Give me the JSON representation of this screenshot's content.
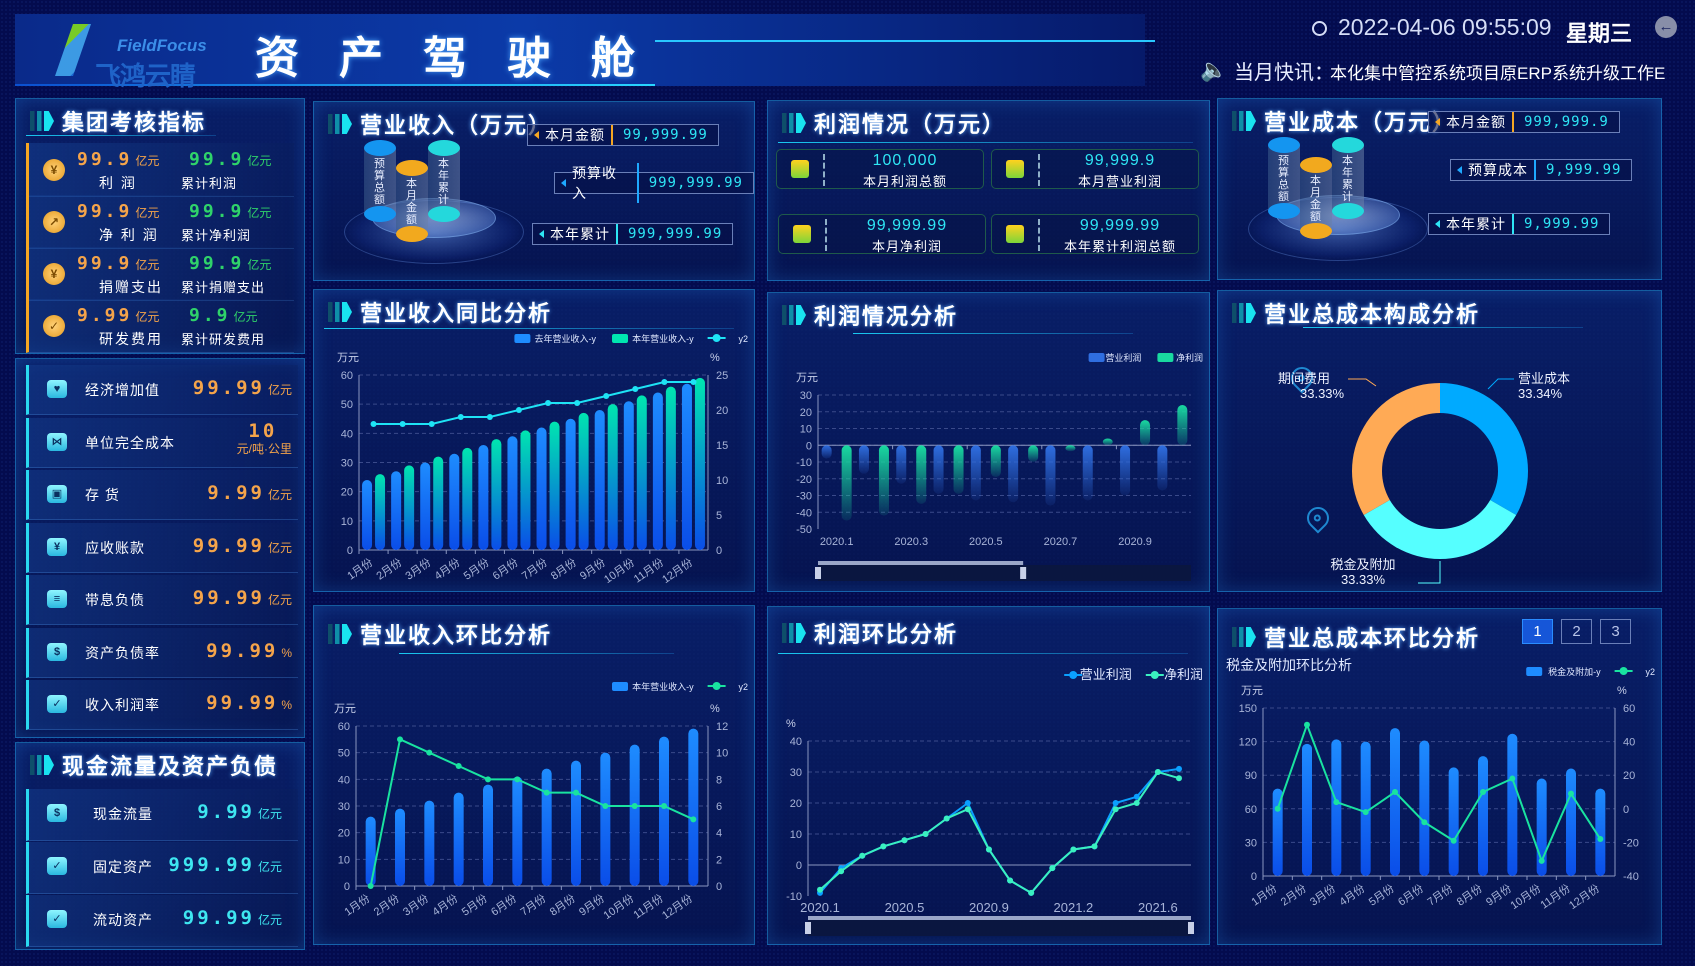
{
  "header": {
    "logo_text": "FieldFocus",
    "logo_cn": "飞鸿云睛",
    "title": "资产驾驶舱",
    "datetime": "2022-04-06  09:55:09",
    "weekday": "星期三",
    "news_label": "当月快讯：",
    "news_text": "本化集中管控系统项目原ERP系统升级工作E",
    "icons": {
      "clock": "clock-icon",
      "news": "speaker-icon",
      "back": "back-arrow-icon"
    }
  },
  "kpi": {
    "title": "集团考核指标",
    "items": [
      {
        "icon": "coins-icon",
        "value": "99.9",
        "unit": "亿元",
        "label": "利 润",
        "cum_value": "99.9",
        "cum_unit": "亿元",
        "cum_label": "累计利润"
      },
      {
        "icon": "trend-chart-icon",
        "value": "99.9",
        "unit": "亿元",
        "label": "净 利 润",
        "cum_value": "99.9",
        "cum_unit": "亿元",
        "cum_label": "累计净利润"
      },
      {
        "icon": "money-bag-icon",
        "value": "99.9",
        "unit": "亿元",
        "label": "捐赠支出",
        "cum_value": "99.9",
        "cum_unit": "亿元",
        "cum_label": "累计捐赠支出"
      },
      {
        "icon": "document-check-icon",
        "value": "9.99",
        "unit": "亿元",
        "label": "研发费用",
        "cum_value": "9.9",
        "cum_unit": "亿元",
        "cum_label": "累计研发费用"
      }
    ]
  },
  "indicators": [
    {
      "icon": "heart-hand-icon",
      "label": "经济增加值",
      "value": "99.99",
      "unit": "亿元"
    },
    {
      "icon": "network-icon",
      "label": "单位完全成本",
      "value": "10",
      "unit": "元/吨·公里"
    },
    {
      "icon": "box-icon",
      "label": "存 货",
      "value": "9.99",
      "unit": "亿元"
    },
    {
      "icon": "yuan-down-icon",
      "label": "应收账款",
      "value": "99.99",
      "unit": "亿元"
    },
    {
      "icon": "invoice-icon",
      "label": "带息负债",
      "value": "99.99",
      "unit": "亿元"
    },
    {
      "icon": "house-money-icon",
      "label": "资产负债率",
      "value": "99.99",
      "unit": "%"
    },
    {
      "icon": "card-check-icon",
      "label": "收入利润率",
      "value": "99.99",
      "unit": "%"
    }
  ],
  "cash": {
    "title": "现金流量及资产负债",
    "items": [
      {
        "icon": "house-money-icon",
        "label": "现金流量",
        "value": "9.99",
        "unit": "亿元"
      },
      {
        "icon": "card-check-icon",
        "label": "固定资产",
        "value": "999.99",
        "unit": "亿元"
      },
      {
        "icon": "card-check-icon",
        "label": "流动资产",
        "value": "99.99",
        "unit": "亿元"
      }
    ]
  },
  "revenue": {
    "title": "营业收入（万元）",
    "cylinders": [
      "预算总额",
      "本月金额",
      "本年累计"
    ],
    "rows": [
      {
        "label": "本月金额",
        "value": "99,999.99"
      },
      {
        "label": "预算收入",
        "value": "999,999.99"
      },
      {
        "label": "本年累计",
        "value": "999,999.99"
      }
    ]
  },
  "profit": {
    "title": "利润情况（万元）",
    "boxes": [
      {
        "icon": "report-check-icon",
        "value": "100,000",
        "label": "本月利润总额"
      },
      {
        "icon": "bar-chart-icon",
        "value": "99,999.9",
        "label": "本月营业利润"
      },
      {
        "icon": "clipboard-check-icon",
        "value": "99,999.99",
        "label": "本月净利润"
      },
      {
        "icon": "pie-chart-icon",
        "value": "99,999.99",
        "label": "本年累计利润总额"
      }
    ]
  },
  "cost": {
    "title": "营业成本（万元）",
    "cylinders": [
      "预算总额",
      "本月金额",
      "本年累计"
    ],
    "rows": [
      {
        "label": "本月金额",
        "value": "999,999.9"
      },
      {
        "label": "预算成本",
        "value": "9,999.99"
      },
      {
        "label": "本年累计",
        "value": "9,999.99"
      }
    ]
  },
  "panels": {
    "rev_yoy": "营业收入同比分析",
    "profit_analysis": "利润情况分析",
    "cost_comp": "营业总成本构成分析",
    "rev_mom": "营业收入环比分析",
    "profit_mom": "利润环比分析",
    "cost_mom": "营业总成本环比分析"
  },
  "cost_mom_tabs": [
    "1",
    "2",
    "3"
  ],
  "cost_mom_active_tab": "1",
  "chart_data": [
    {
      "type": "bar",
      "ylabel": "万元",
      "y2label": "%",
      "ylim": [
        0,
        60
      ],
      "yticks": [
        0,
        10,
        20,
        30,
        40,
        50,
        60
      ],
      "y2lim": [
        0,
        25
      ],
      "y2ticks": [
        0,
        5,
        10,
        15,
        20,
        25
      ],
      "grid": true,
      "legend": "top-right",
      "categories": [
        "1月份",
        "2月份",
        "3月份",
        "4月份",
        "5月份",
        "6月份",
        "7月份",
        "8月份",
        "9月份",
        "10月份",
        "11月份",
        "12月份"
      ],
      "series": [
        {
          "name": "去年营业收入-y",
          "type": "bar",
          "axis": "left",
          "color": "#1e8cff",
          "values": [
            24,
            27,
            30,
            33,
            36,
            39,
            42,
            45,
            48,
            51,
            54,
            57
          ]
        },
        {
          "name": "本年营业收入-y",
          "type": "bar",
          "axis": "left",
          "color": "#00e5b0",
          "values": [
            26,
            29,
            32,
            35,
            38,
            41,
            44,
            47,
            50,
            53,
            56,
            59
          ]
        },
        {
          "name": "y2",
          "type": "line",
          "axis": "right",
          "color": "#1ee3f5",
          "values": [
            18,
            18,
            18,
            19,
            19,
            20,
            21,
            21,
            22,
            23,
            24,
            24
          ]
        }
      ]
    },
    {
      "type": "bar",
      "ylabel": "万元",
      "ylim": [
        -50,
        30
      ],
      "yticks": [
        -50,
        -40,
        -30,
        -20,
        -10,
        0,
        10,
        20,
        30
      ],
      "grid": true,
      "legend": "top-right",
      "categories": [
        "2020.1",
        "2020.2",
        "2020.3",
        "2020.4",
        "2020.5",
        "2020.6",
        "2020.7",
        "2020.8",
        "2020.9",
        "2020.10"
      ],
      "series": [
        {
          "name": "营业利润",
          "type": "bar",
          "axis": "left",
          "color": "#2f6ee0",
          "values": [
            -8,
            -17,
            -23,
            -29,
            -33,
            -34,
            -36,
            -33,
            -30,
            -27
          ]
        },
        {
          "name": "净利润",
          "type": "bar",
          "axis": "left",
          "color": "#19d9a0",
          "values": [
            -45,
            -42,
            -35,
            -29,
            -19,
            -10,
            -1,
            4,
            15,
            24
          ]
        }
      ]
    },
    {
      "type": "pie",
      "slices": [
        {
          "name": "营业成本",
          "value": 33.34,
          "color": "#00aaff"
        },
        {
          "name": "税金及附加",
          "value": 33.33,
          "color": "#55ffff"
        },
        {
          "name": "期间费用",
          "value": 33.33,
          "color": "#ffaa55"
        }
      ]
    },
    {
      "type": "bar",
      "ylabel": "万元",
      "y2label": "%",
      "ylim": [
        0,
        60
      ],
      "yticks": [
        0,
        10,
        20,
        30,
        40,
        50,
        60
      ],
      "y2lim": [
        0,
        12
      ],
      "y2ticks": [
        0,
        2,
        4,
        6,
        8,
        10,
        12
      ],
      "grid": true,
      "legend": "top-right",
      "categories": [
        "1月份",
        "2月份",
        "3月份",
        "4月份",
        "5月份",
        "6月份",
        "7月份",
        "8月份",
        "9月份",
        "10月份",
        "11月份",
        "12月份"
      ],
      "series": [
        {
          "name": "本年营业收入-y",
          "type": "bar",
          "axis": "left",
          "color": "#1e8cff",
          "values": [
            26,
            29,
            32,
            35,
            38,
            41,
            44,
            47,
            50,
            53,
            56,
            59
          ]
        },
        {
          "name": "y2",
          "type": "line",
          "axis": "right",
          "color": "#19e3a0",
          "values": [
            0,
            11,
            10,
            9,
            8,
            8,
            7,
            7,
            6,
            6,
            6,
            5
          ]
        }
      ]
    },
    {
      "type": "line",
      "ylabel": "%",
      "ylim": [
        -10,
        40
      ],
      "yticks": [
        -10,
        0,
        10,
        20,
        30,
        40
      ],
      "grid": true,
      "legend": "top-right",
      "categories": [
        "2020.1",
        "2020.2",
        "2020.3",
        "2020.4",
        "2020.5",
        "2020.6",
        "2020.7",
        "2020.8",
        "2020.9",
        "2020.10",
        "2020.11",
        "2020.12",
        "2021.2",
        "2021.3",
        "2021.4",
        "2021.5",
        "2021.6",
        "2021.7"
      ],
      "series": [
        {
          "name": "营业利润",
          "type": "line",
          "axis": "left",
          "color": "#0aa0ff",
          "values": [
            -9,
            -1,
            3,
            6,
            8,
            10,
            15,
            20,
            5,
            -5,
            -9,
            -1,
            5,
            6,
            20,
            22,
            30,
            31
          ]
        },
        {
          "name": "净利润",
          "type": "line",
          "axis": "left",
          "color": "#3af0c0",
          "values": [
            -8,
            -2,
            3,
            6,
            8,
            10,
            15,
            18,
            5,
            -5,
            -9,
            -1,
            5,
            6,
            18,
            20,
            30,
            28
          ]
        }
      ]
    },
    {
      "type": "bar",
      "title": "税金及附加环比分析",
      "ylabel": "万元",
      "y2label": "%",
      "ylim": [
        0,
        150
      ],
      "yticks": [
        0,
        30,
        60,
        90,
        120,
        150
      ],
      "y2lim": [
        -40,
        60
      ],
      "y2ticks": [
        -40,
        -20,
        0,
        20,
        40,
        60
      ],
      "grid": true,
      "legend": "top-right",
      "categories": [
        "1月份",
        "2月份",
        "3月份",
        "4月份",
        "5月份",
        "6月份",
        "7月份",
        "8月份",
        "9月份",
        "10月份",
        "11月份",
        "12月份"
      ],
      "series": [
        {
          "name": "税金及附加-y",
          "type": "bar",
          "axis": "left",
          "color": "#1e8cff",
          "values": [
            78,
            118,
            122,
            120,
            132,
            121,
            97,
            107,
            127,
            87,
            96,
            78
          ]
        },
        {
          "name": "y2",
          "type": "line",
          "axis": "right",
          "color": "#19e3a0",
          "values": [
            0,
            50,
            4,
            -2,
            10,
            -8,
            -19,
            10,
            18,
            -31,
            9,
            -18
          ]
        }
      ]
    }
  ]
}
